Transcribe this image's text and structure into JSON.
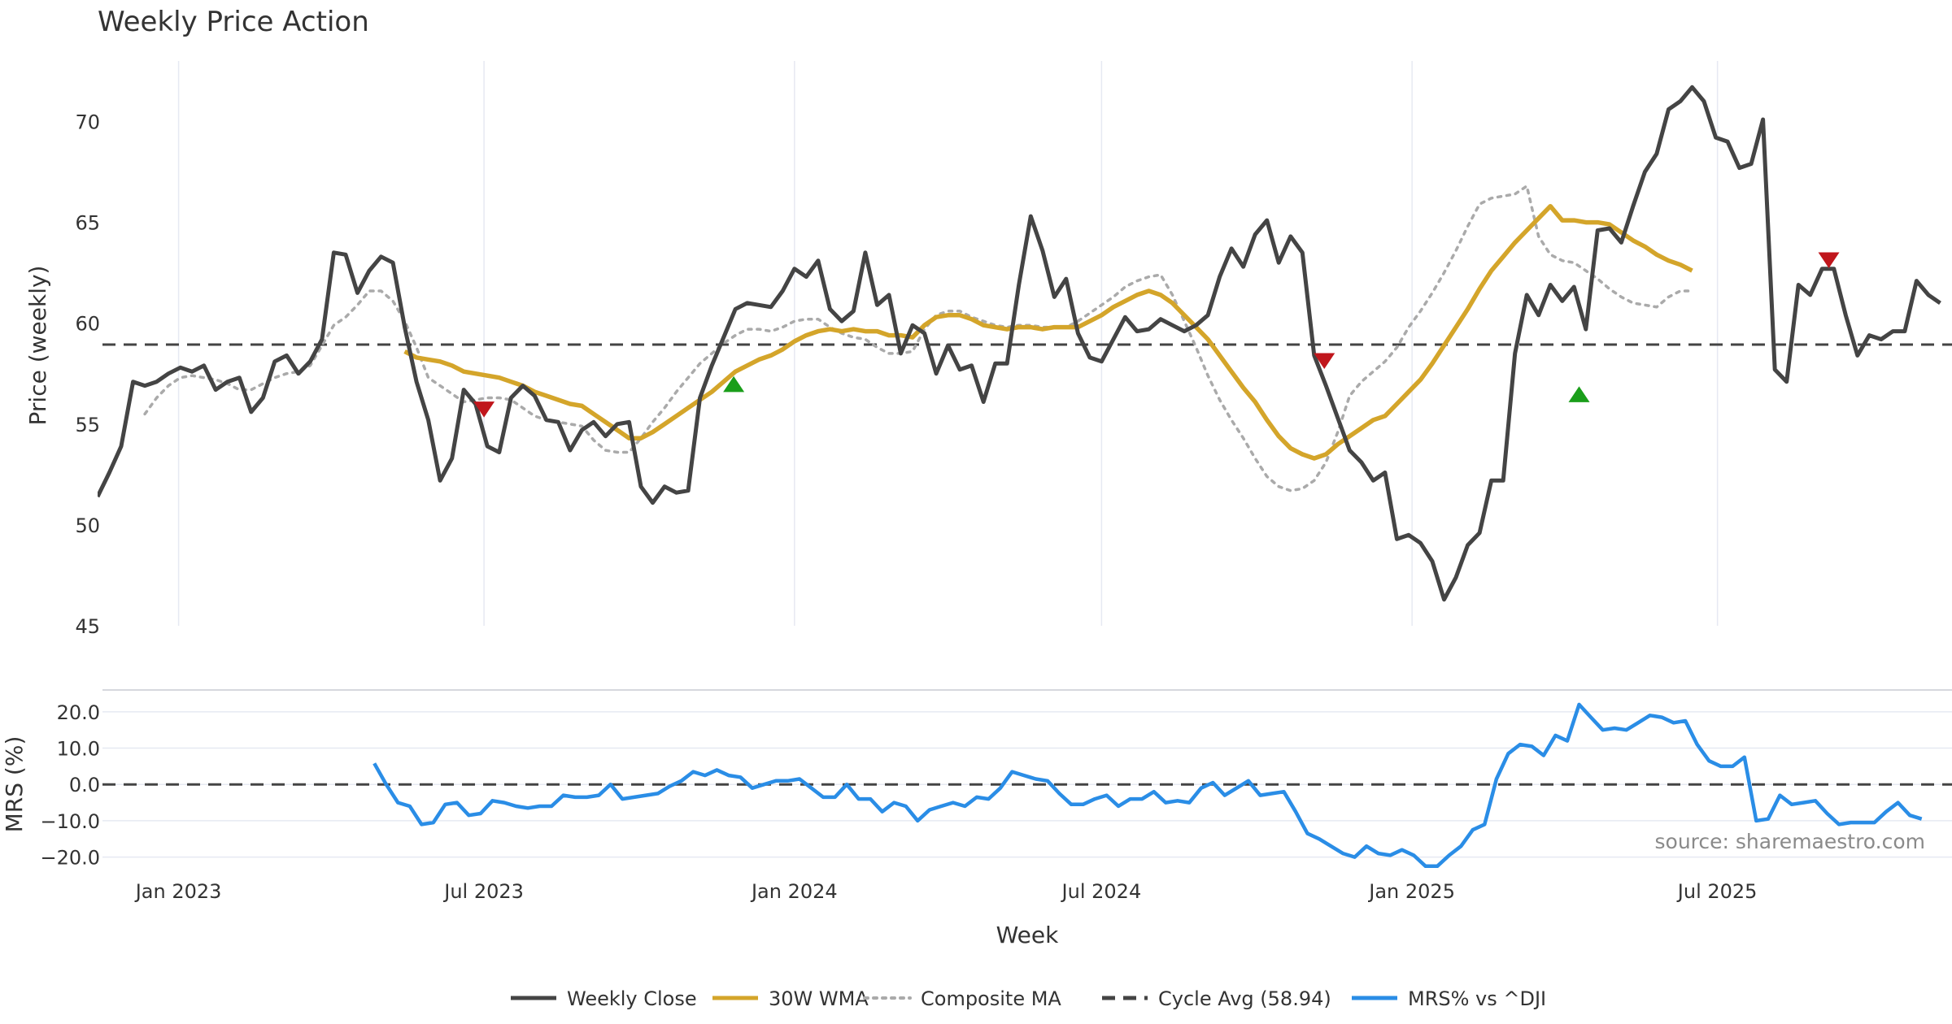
{
  "chart_data": [
    {
      "type": "line",
      "title": "Weekly Price Action",
      "xlabel": "Week",
      "ylabel": "Price (weekly)",
      "ylim": [
        45,
        73
      ],
      "yticks": [
        45,
        50,
        55,
        60,
        65,
        70
      ],
      "xlim": [
        "2022-11-14",
        "2025-11-17"
      ],
      "xticks": [
        {
          "date": "2023-01-01",
          "label": "Jan 2023"
        },
        {
          "date": "2023-07-01",
          "label": "Jul 2023"
        },
        {
          "date": "2024-01-01",
          "label": "Jan 2024"
        },
        {
          "date": "2024-07-01",
          "label": "Jul 2024"
        },
        {
          "date": "2025-01-01",
          "label": "Jan 2025"
        },
        {
          "date": "2025-07-01",
          "label": "Jul 2025"
        }
      ],
      "series": [
        {
          "name": "Weekly Close",
          "color": "#444444",
          "style": "solid",
          "start": "2022-11-14",
          "values": [
            51.4,
            52.6,
            53.9,
            57.1,
            56.9,
            57.1,
            57.5,
            57.8,
            57.6,
            57.9,
            56.7,
            57.1,
            57.3,
            55.6,
            56.3,
            58.1,
            58.4,
            57.5,
            58.1,
            59.2,
            63.5,
            63.4,
            61.5,
            62.6,
            63.3,
            63.0,
            59.8,
            57.1,
            55.2,
            52.2,
            53.3,
            56.7,
            56.0,
            53.9,
            53.6,
            56.3,
            56.9,
            56.4,
            55.2,
            55.1,
            53.7,
            54.7,
            55.1,
            54.4,
            55.0,
            55.1,
            51.9,
            51.1,
            51.9,
            51.6,
            51.7,
            56.3,
            57.9,
            59.3,
            60.7,
            61.0,
            60.9,
            60.8,
            61.6,
            62.7,
            62.3,
            63.1,
            60.7,
            60.1,
            60.6,
            63.5,
            60.9,
            61.4,
            58.5,
            59.9,
            59.5,
            57.5,
            58.9,
            57.7,
            57.9,
            56.1,
            58.0,
            58.0,
            61.9,
            65.3,
            63.6,
            61.3,
            62.2,
            59.5,
            58.3,
            58.1,
            59.2,
            60.3,
            59.6,
            59.7,
            60.2,
            59.9,
            59.6,
            59.9,
            60.4,
            62.3,
            63.7,
            62.8,
            64.4,
            65.1,
            63.0,
            64.3,
            63.5,
            58.4,
            56.9,
            55.3,
            53.7,
            53.1,
            52.2,
            52.6,
            49.3,
            49.5,
            49.1,
            48.2,
            46.3,
            47.4,
            49.0,
            49.6,
            52.2,
            52.2,
            58.5,
            61.4,
            60.4,
            61.9,
            61.1,
            61.8,
            59.7,
            64.6,
            64.7,
            64.0,
            65.8,
            67.5,
            68.4,
            70.6,
            71.0,
            71.7,
            71.0,
            69.2,
            69.0,
            67.7,
            67.9,
            70.1,
            57.7,
            57.1,
            61.9,
            61.4,
            62.7,
            62.7,
            60.4,
            58.4,
            59.4,
            59.2,
            59.6,
            59.6,
            62.1,
            61.4,
            61.0
          ]
        },
        {
          "name": "30W WMA",
          "color": "#d4a52a",
          "style": "solid",
          "start": "2023-05-15",
          "values": [
            58.6,
            58.3,
            58.2,
            58.1,
            57.9,
            57.6,
            57.5,
            57.4,
            57.3,
            57.1,
            56.9,
            56.6,
            56.4,
            56.2,
            56.0,
            55.9,
            55.5,
            55.1,
            54.7,
            54.3,
            54.3,
            54.6,
            55.0,
            55.4,
            55.8,
            56.2,
            56.6,
            57.1,
            57.6,
            57.9,
            58.2,
            58.4,
            58.7,
            59.1,
            59.4,
            59.6,
            59.7,
            59.6,
            59.7,
            59.6,
            59.6,
            59.4,
            59.4,
            59.3,
            59.9,
            60.3,
            60.4,
            60.4,
            60.2,
            59.9,
            59.8,
            59.7,
            59.8,
            59.8,
            59.7,
            59.8,
            59.8,
            59.8,
            60.1,
            60.4,
            60.8,
            61.1,
            61.4,
            61.6,
            61.4,
            61.0,
            60.4,
            59.8,
            59.2,
            58.4,
            57.6,
            56.8,
            56.1,
            55.2,
            54.4,
            53.8,
            53.5,
            53.3,
            53.5,
            54.0,
            54.4,
            54.8,
            55.2,
            55.4,
            56.0,
            56.6,
            57.2,
            58.0,
            58.9,
            59.8,
            60.7,
            61.7,
            62.6,
            63.3,
            64.0,
            64.6,
            65.2,
            65.8,
            65.1,
            65.1,
            65.0,
            65.0,
            64.9,
            64.5,
            64.1,
            63.8,
            63.4,
            63.1,
            62.9,
            62.6
          ]
        },
        {
          "name": "Composite MA",
          "color": "#aaaaaa",
          "style": "dotted",
          "start": "2022-12-12",
          "values": [
            55.5,
            56.3,
            56.9,
            57.3,
            57.4,
            57.3,
            57.2,
            57.0,
            56.7,
            56.7,
            57.0,
            57.3,
            57.5,
            57.6,
            57.9,
            58.9,
            59.9,
            60.3,
            60.9,
            61.6,
            61.6,
            61.1,
            60.1,
            58.8,
            57.3,
            56.9,
            56.5,
            56.1,
            56.2,
            56.3,
            56.3,
            56.2,
            55.8,
            55.4,
            55.2,
            55.1,
            55.0,
            54.9,
            54.2,
            53.7,
            53.6,
            53.6,
            54.3,
            55.1,
            55.8,
            56.6,
            57.3,
            58.0,
            58.5,
            59.0,
            59.4,
            59.7,
            59.7,
            59.6,
            59.8,
            60.1,
            60.2,
            60.2,
            59.8,
            59.5,
            59.3,
            59.2,
            58.8,
            58.5,
            58.5,
            58.6,
            59.7,
            60.4,
            60.6,
            60.6,
            60.3,
            60.1,
            59.9,
            59.8,
            59.9,
            59.9,
            59.8,
            59.8,
            59.8,
            60.1,
            60.5,
            60.9,
            61.3,
            61.8,
            62.1,
            62.3,
            62.4,
            61.4,
            60.1,
            58.8,
            57.4,
            56.2,
            55.2,
            54.3,
            53.3,
            52.4,
            51.9,
            51.7,
            51.8,
            52.2,
            53.1,
            54.6,
            56.4,
            57.1,
            57.6,
            58.1,
            58.8,
            59.8,
            60.6,
            61.5,
            62.5,
            63.6,
            64.8,
            65.9,
            66.2,
            66.3,
            66.4,
            66.8,
            64.3,
            63.4,
            63.1,
            63.0,
            62.6,
            62.2,
            61.7,
            61.3,
            61.0,
            60.9,
            60.8,
            61.3,
            61.6,
            61.6
          ]
        },
        {
          "name": "Cycle Avg (58.94)",
          "color": "#444444",
          "style": "dashed",
          "constant": 58.94
        }
      ],
      "signals": [
        {
          "date": "2023-07-01",
          "value": 55.8,
          "direction": "down",
          "color": "#c0161c"
        },
        {
          "date": "2023-11-26",
          "value": 56.9,
          "direction": "up",
          "color": "#1a9e1a"
        },
        {
          "date": "2024-11-10",
          "value": 58.2,
          "direction": "down",
          "color": "#c0161c"
        },
        {
          "date": "2025-04-10",
          "value": 56.4,
          "direction": "up",
          "color": "#1a9e1a"
        },
        {
          "date": "2025-09-05",
          "value": 63.2,
          "direction": "down",
          "color": "#c0161c"
        }
      ]
    },
    {
      "type": "line",
      "title": "",
      "xlabel": "Week",
      "ylabel": "MRS (%)",
      "ylim": [
        -23,
        24
      ],
      "yticks": [
        -20,
        -10,
        0,
        10,
        20
      ],
      "ytick_labels": [
        "−20.0",
        "−10.0",
        "0.0",
        "10.0",
        "20.0"
      ],
      "annotation": "source: sharemaestro.com",
      "series": [
        {
          "name": "MRS% vs ^DJI",
          "color": "#2a8de6",
          "style": "solid",
          "start": "2023-04-27",
          "values": [
            5.8,
            0.0,
            -5.0,
            -6.0,
            -11.0,
            -10.5,
            -5.5,
            -5.0,
            -8.5,
            -8.0,
            -4.5,
            -5.0,
            -6.0,
            -6.5,
            -6.0,
            -6.0,
            -3.0,
            -3.5,
            -3.5,
            -3.0,
            0.0,
            -4.0,
            -3.5,
            -3.0,
            -2.5,
            -0.5,
            1.0,
            3.5,
            2.5,
            4.0,
            2.5,
            2.0,
            -1.0,
            0.0,
            1.0,
            1.0,
            1.5,
            -1.0,
            -3.5,
            -3.5,
            0.0,
            -4.0,
            -4.0,
            -7.5,
            -5.0,
            -6.0,
            -10.0,
            -7.0,
            -6.0,
            -5.0,
            -6.0,
            -3.5,
            -4.0,
            -1.0,
            3.5,
            2.5,
            1.5,
            1.0,
            -2.5,
            -5.5,
            -5.5,
            -4.0,
            -3.0,
            -6.0,
            -4.0,
            -4.0,
            -2.0,
            -5.0,
            -4.5,
            -5.0,
            -1.0,
            0.5,
            -3.0,
            -1.0,
            1.0,
            -3.0,
            -2.5,
            -2.0,
            -7.5,
            -13.5,
            -15.0,
            -17.0,
            -19.0,
            -20.0,
            -17.0,
            -19.0,
            -19.5,
            -18.0,
            -19.5,
            -22.5,
            -22.5,
            -19.5,
            -17.0,
            -12.5,
            -11.0,
            1.5,
            8.5,
            11.0,
            10.5,
            8.0,
            13.5,
            12.0,
            22.0,
            18.5,
            15.0,
            15.5,
            15.0,
            17.0,
            19.0,
            18.5,
            17.0,
            17.5,
            11.0,
            6.5,
            5.0,
            5.0,
            7.5,
            -10.0,
            -9.5,
            -3.0,
            -5.5,
            -5.0,
            -4.5,
            -8.0,
            -11.0,
            -10.5,
            -10.5,
            -10.5,
            -7.5,
            -5.0,
            -8.5,
            -9.5
          ]
        },
        {
          "name": "Zero line",
          "color": "#444444",
          "style": "dashed",
          "constant": 0
        }
      ]
    }
  ],
  "legend": [
    {
      "label": "Weekly Close",
      "color": "#444444",
      "style": "solid"
    },
    {
      "label": "30W WMA",
      "color": "#d4a52a",
      "style": "solid"
    },
    {
      "label": "Composite MA",
      "color": "#aaaaaa",
      "style": "dotted"
    },
    {
      "label": "Cycle Avg (58.94)",
      "color": "#444444",
      "style": "dashed"
    },
    {
      "label": "MRS% vs ^DJI",
      "color": "#2a8de6",
      "style": "solid"
    }
  ]
}
